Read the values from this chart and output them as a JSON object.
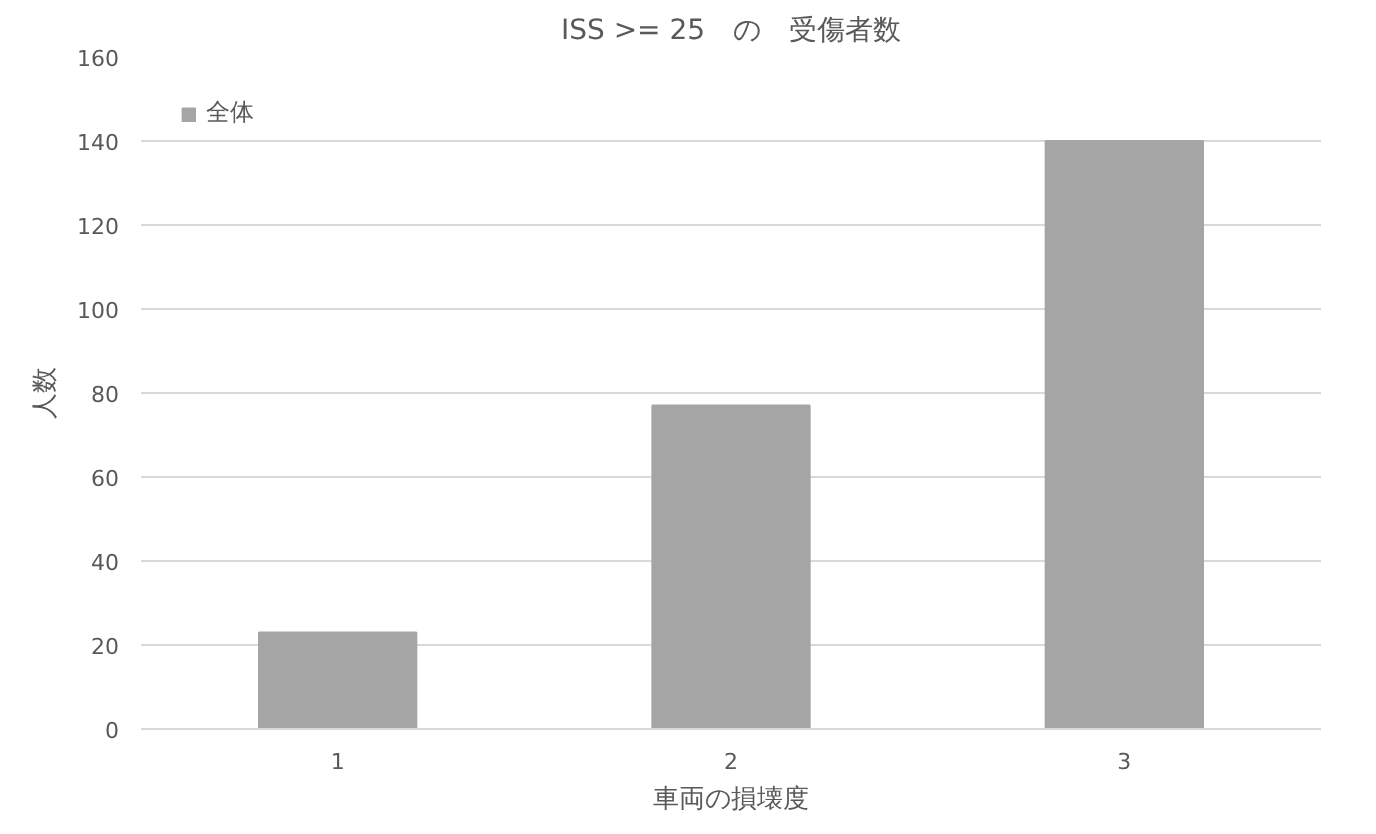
{
  "chart_data": {
    "type": "bar",
    "title": "ISS >= 25　の　受傷者数",
    "xlabel": "車両の損壊度",
    "ylabel": "人数",
    "categories": [
      "1",
      "2",
      "3"
    ],
    "series": [
      {
        "name": "全体",
        "color": "#a5a5a5",
        "values": [
          23,
          77,
          140
        ]
      }
    ],
    "ylim": [
      0,
      160
    ],
    "yticks": [
      0,
      20,
      40,
      60,
      80,
      100,
      120,
      140,
      160
    ],
    "grid": "y",
    "legend": "top left"
  }
}
